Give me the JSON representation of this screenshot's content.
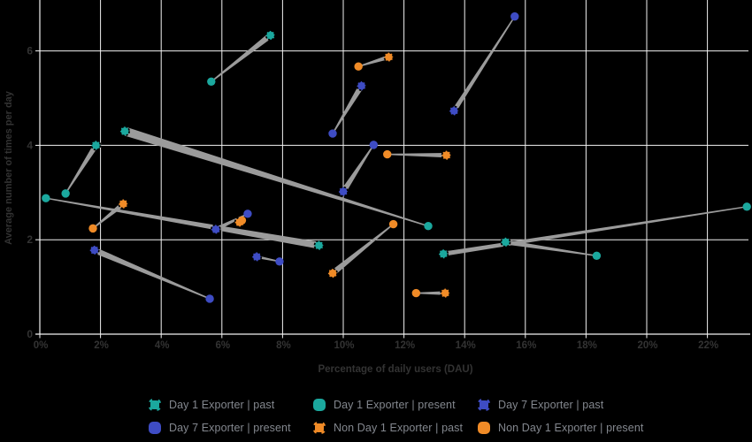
{
  "chart_data": {
    "type": "scatter",
    "subtype": "paired-comet (past to present movement per cohort)",
    "title": "",
    "xlabel": "Percentage of daily users (DAU)",
    "ylabel": "Average number of times per day",
    "xlim": [
      0,
      23.5
    ],
    "ylim": [
      0,
      7.08
    ],
    "x_tick_values": [
      0,
      2,
      4,
      6,
      8,
      10,
      12,
      14,
      16,
      18,
      20,
      22
    ],
    "x_tick_labels": [
      "0%",
      "2%",
      "4%",
      "6%",
      "8%",
      "10%",
      "12%",
      "14%",
      "16%",
      "18%",
      "20%",
      "22%"
    ],
    "y_tick_values": [
      0,
      2,
      4,
      6
    ],
    "y_tick_labels": [
      "0",
      "2",
      "4",
      "6"
    ],
    "grid": true,
    "legend_position": "bottom",
    "colors": {
      "background": "#000000",
      "gridline": "#f2f2f2",
      "axis_text": "#333333",
      "legend_text": "#83878e",
      "connector": "#9b9b9b",
      "day1_teal": "#1ba89e",
      "day7_blue": "#3e4cc4",
      "nonday1_orange": "#f08b27"
    },
    "series": [
      {
        "name": "Day 1 Exporter",
        "color": "#1ba89e",
        "pairs": [
          {
            "past": [
              1.85,
              4.0
            ],
            "present": [
              0.85,
              2.98
            ],
            "w": 3.0
          },
          {
            "past": [
              7.6,
              6.33
            ],
            "present": [
              5.65,
              5.35
            ],
            "w": 3.3
          },
          {
            "past": [
              2.8,
              4.3
            ],
            "present": [
              12.8,
              2.29
            ],
            "w": 5.0
          },
          {
            "past": [
              9.2,
              1.88
            ],
            "present": [
              0.2,
              2.88
            ],
            "w": 4.0
          },
          {
            "past": [
              13.3,
              1.7
            ],
            "present": [
              23.3,
              2.7
            ],
            "w": 2.6
          },
          {
            "past": [
              15.35,
              1.95
            ],
            "present": [
              18.35,
              1.66
            ],
            "w": 2.6
          }
        ]
      },
      {
        "name": "Day 7 Exporter",
        "color": "#3e4cc4",
        "pairs": [
          {
            "past": [
              1.8,
              1.78
            ],
            "present": [
              5.6,
              0.75
            ],
            "w": 3.4
          },
          {
            "past": [
              5.8,
              2.22
            ],
            "present": [
              6.85,
              2.55
            ],
            "w": 2.4
          },
          {
            "past": [
              7.15,
              1.64
            ],
            "present": [
              7.9,
              1.54
            ],
            "w": 1.6
          },
          {
            "past": [
              10.0,
              3.02
            ],
            "present": [
              11.0,
              4.01
            ],
            "w": 3.2
          },
          {
            "past": [
              10.6,
              5.26
            ],
            "present": [
              9.65,
              4.25
            ],
            "w": 3.2
          },
          {
            "past": [
              13.65,
              4.73
            ],
            "present": [
              15.65,
              6.73
            ],
            "w": 2.6
          }
        ]
      },
      {
        "name": "Non Day 1 Exporter",
        "color": "#f08b27",
        "pairs": [
          {
            "past": [
              2.75,
              2.76
            ],
            "present": [
              1.75,
              2.24
            ],
            "w": 2.8
          },
          {
            "past": [
              6.58,
              2.37
            ],
            "present": [
              6.66,
              2.41
            ],
            "w": 1.0
          },
          {
            "past": [
              9.65,
              1.29
            ],
            "present": [
              11.65,
              2.33
            ],
            "w": 3.4
          },
          {
            "past": [
              11.5,
              5.87
            ],
            "present": [
              10.5,
              5.67
            ],
            "w": 2.4
          },
          {
            "past": [
              13.4,
              3.79
            ],
            "present": [
              11.45,
              3.81
            ],
            "w": 2.6
          },
          {
            "past": [
              13.36,
              0.87
            ],
            "present": [
              12.4,
              0.87
            ],
            "w": 2.2
          }
        ]
      }
    ],
    "legend_items": [
      {
        "label": "Day 1 Exporter | past",
        "series": 0,
        "style": "past"
      },
      {
        "label": "Day 1 Exporter | present",
        "series": 0,
        "style": "present"
      },
      {
        "label": "Day 7 Exporter | past",
        "series": 1,
        "style": "past"
      },
      {
        "label": "Day 7 Exporter | present",
        "series": 1,
        "style": "present"
      },
      {
        "label": "Non Day 1 Exporter | past",
        "series": 2,
        "style": "past"
      },
      {
        "label": "Non Day 1 Exporter | present",
        "series": 2,
        "style": "present"
      }
    ]
  }
}
